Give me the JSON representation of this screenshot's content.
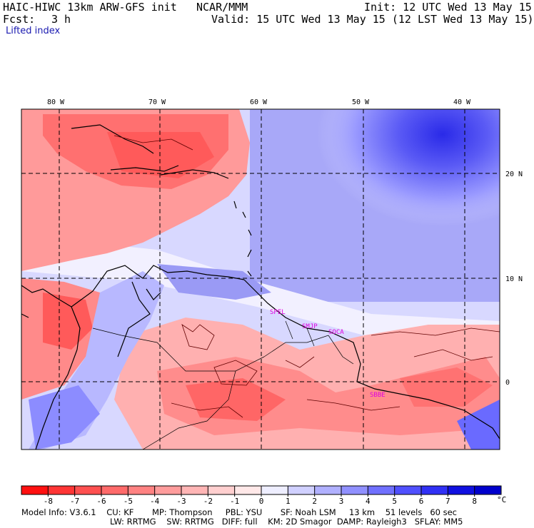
{
  "header": {
    "model_title": "HAIC-HIWC 13km ARW-GFS init",
    "org": "NCAR/MMM",
    "init": "Init: 12 UTC Wed 13 May 15",
    "fcst_label": "Fcst:",
    "fcst_value": "3 h",
    "valid": "Valid: 15 UTC Wed 13 May 15 (12 LST Wed 13 May 15)",
    "field_name": "Lifted index"
  },
  "map": {
    "lon_labels": [
      "80 W",
      "70 W",
      "60 W",
      "50 W",
      "40 W"
    ],
    "lat_labels": [
      "20 N",
      "10 N",
      "0"
    ],
    "stations": [
      "SPEL",
      "SMJP",
      "SOCA",
      "SBBE"
    ],
    "colors": {
      "station": "#e000e0",
      "grid": "#000000",
      "coast": "#000000"
    }
  },
  "colorbar": {
    "ticks": [
      "-8",
      "-7",
      "-6",
      "-5",
      "-4",
      "-3",
      "-2",
      "-1",
      "0",
      "1",
      "2",
      "3",
      "4",
      "5",
      "6",
      "7",
      "8"
    ],
    "unit": "°C",
    "colors": [
      "#ff1010",
      "#ff3535",
      "#ff5050",
      "#ff6a6a",
      "#ff8282",
      "#ff9c9c",
      "#ffb5b5",
      "#ffcfcf",
      "#ffe8e8",
      "#eeeeff",
      "#d0d0ff",
      "#b0b0ff",
      "#9090ff",
      "#7070ff",
      "#5050ff",
      "#3030f5",
      "#1010e0",
      "#0000cc"
    ]
  },
  "footer": {
    "line1": "Model Info: V3.6.1    CU: KF       MP: Thompson     PBL: YSU       SF: Noah LSM     13 km    51 levels   60 sec",
    "line2": "LW: RRTMG    SW: RRTMG   DIFF: full    KM: 2D Smagor  DAMP: Rayleigh3   SFLAY: MM5"
  }
}
